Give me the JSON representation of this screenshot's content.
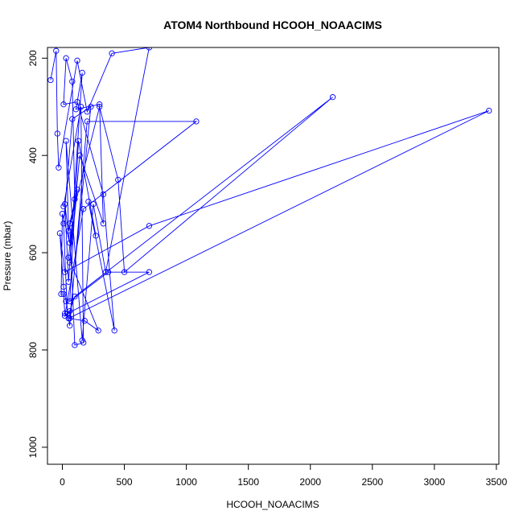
{
  "chart_data": {
    "type": "line",
    "title": "ATOM4 Northbound HCOOH_NOAACIMS",
    "xlabel": "HCOOH_NOAACIMS",
    "ylabel": "Pressure (mbar)",
    "xlim": [
      -120,
      3520
    ],
    "ylim": [
      1035,
      178
    ],
    "y_reversed": true,
    "x_ticks": [
      0,
      500,
      1000,
      1500,
      2000,
      2500,
      3000,
      3500
    ],
    "y_ticks": [
      200,
      400,
      600,
      800,
      1000
    ],
    "grid": false,
    "legend": "none",
    "markers": "open-circle",
    "series_color": "#0000ff",
    "series": [
      {
        "x": [
          -95,
          -50,
          -40,
          -30,
          120,
          200,
          400,
          700,
          350,
          250,
          160,
          30,
          50,
          300,
          450,
          500,
          2180,
          100,
          60,
          20,
          170,
          1080,
          200,
          60,
          30,
          10,
          -20,
          20,
          700,
          3440,
          50,
          180,
          290,
          50,
          100,
          80,
          30,
          10,
          120,
          330,
          420,
          210,
          270,
          130,
          60,
          370,
          700,
          40,
          10,
          80,
          230,
          60,
          20,
          10,
          -10,
          0,
          60,
          20,
          50,
          160,
          110,
          300,
          330,
          140,
          60,
          120,
          60,
          100,
          170,
          150,
          10
        ],
        "y": [
          245,
          185,
          355,
          425,
          205,
          310,
          190,
          178,
          640,
          500,
          780,
          370,
          555,
          300,
          450,
          640,
          280,
          690,
          720,
          730,
          510,
          330,
          330,
          750,
          700,
          670,
          560,
          640,
          545,
          308,
          735,
          740,
          760,
          610,
          490,
          248,
          200,
          295,
          290,
          480,
          760,
          495,
          565,
          370,
          700,
          640,
          640,
          725,
          540,
          325,
          300,
          735,
          725,
          685,
          685,
          520,
          580,
          500,
          660,
          230,
          305,
          295,
          540,
          400,
          620,
          470,
          540,
          790,
          785,
          300,
          505
        ]
      }
    ]
  }
}
